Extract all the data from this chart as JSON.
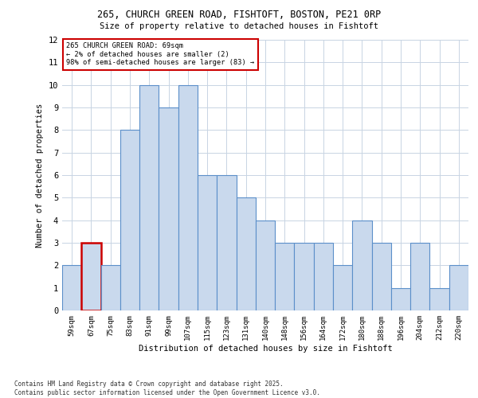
{
  "title1": "265, CHURCH GREEN ROAD, FISHTOFT, BOSTON, PE21 0RP",
  "title2": "Size of property relative to detached houses in Fishtoft",
  "xlabel": "Distribution of detached houses by size in Fishtoft",
  "ylabel": "Number of detached properties",
  "footnote": "Contains HM Land Registry data © Crown copyright and database right 2025.\nContains public sector information licensed under the Open Government Licence v3.0.",
  "annotation_line1": "265 CHURCH GREEN ROAD: 69sqm",
  "annotation_line2": "← 2% of detached houses are smaller (2)",
  "annotation_line3": "98% of semi-detached houses are larger (83) →",
  "bar_labels": [
    "59sqm",
    "67sqm",
    "75sqm",
    "83sqm",
    "91sqm",
    "99sqm",
    "107sqm",
    "115sqm",
    "123sqm",
    "131sqm",
    "140sqm",
    "148sqm",
    "156sqm",
    "164sqm",
    "172sqm",
    "180sqm",
    "188sqm",
    "196sqm",
    "204sqm",
    "212sqm",
    "220sqm"
  ],
  "bar_values": [
    2,
    3,
    2,
    8,
    10,
    9,
    10,
    6,
    6,
    5,
    4,
    3,
    3,
    3,
    2,
    4,
    3,
    1,
    3,
    1,
    2
  ],
  "highlight_index": 1,
  "bar_color": "#c9d9ed",
  "bar_edge_color": "#5b8fc9",
  "highlight_bar_edge_color": "#cc0000",
  "annotation_box_edge": "#cc0000",
  "background_color": "#ffffff",
  "grid_color": "#c8d4e3",
  "ylim": [
    0,
    12
  ],
  "yticks": [
    0,
    1,
    2,
    3,
    4,
    5,
    6,
    7,
    8,
    9,
    10,
    11,
    12
  ]
}
